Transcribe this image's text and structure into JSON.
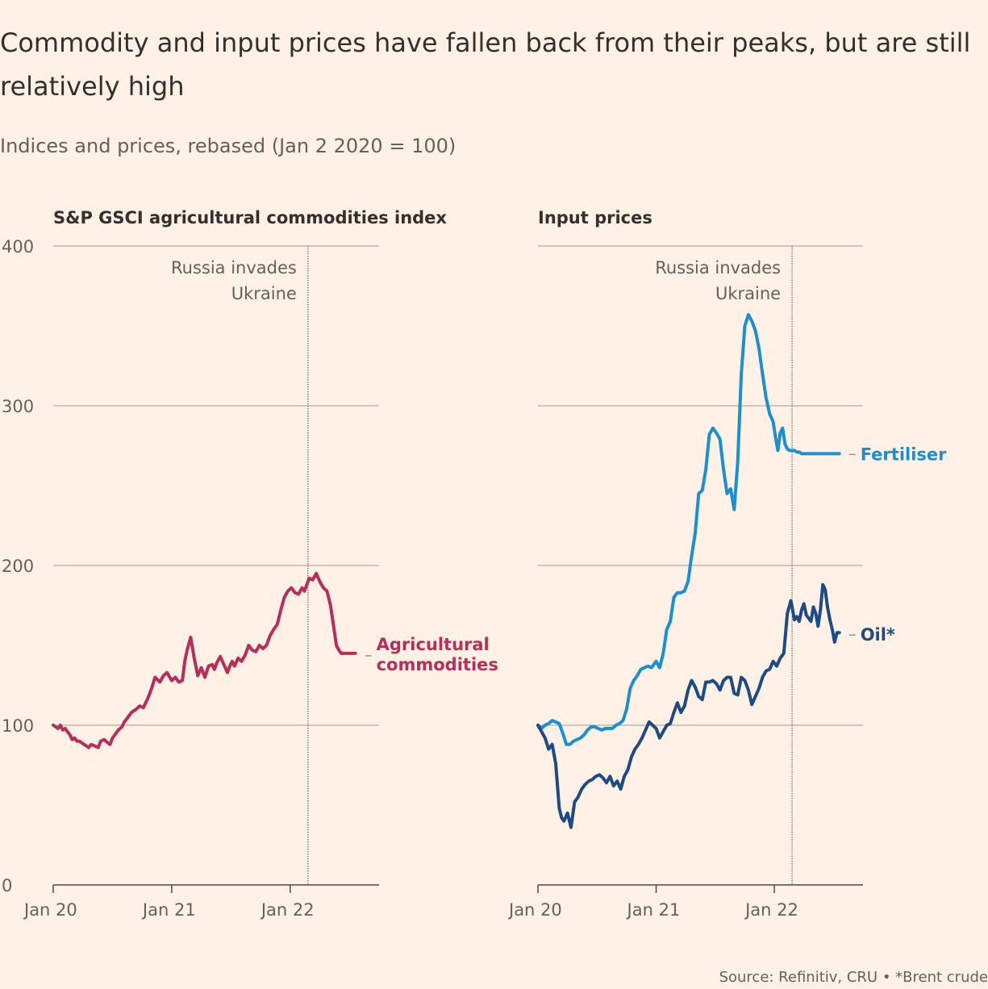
{
  "title": "Commodity and input prices have fallen back from their peaks, but are still relatively high",
  "subtitle": "Indices and prices, rebased (Jan 2 2020 = 100)",
  "source": "Source: Refinitiv, CRU • *Brent crude",
  "colors": {
    "background": "#fff1e5",
    "grid": "#b7ada4",
    "text": "#33302e",
    "muted": "#66605c",
    "agri": "#b72e5a",
    "fertiliser": "#1a8fd2",
    "oil": "#1d4b86"
  },
  "chart_data": [
    {
      "type": "line",
      "title": "S&P GSCI agricultural commodities index",
      "ylim": [
        0,
        400
      ],
      "yticks": [
        0,
        100,
        200,
        300,
        400
      ],
      "xlim": [
        2020.0,
        2022.75
      ],
      "xticks": [
        {
          "value": 2020.0,
          "label": "Jan 20"
        },
        {
          "value": 2021.0,
          "label": "Jan 21"
        },
        {
          "value": 2022.0,
          "label": "Jan 22"
        }
      ],
      "grid": true,
      "annotation": {
        "x": 2022.15,
        "lines": [
          "Russia invades",
          "Ukraine"
        ]
      },
      "series": [
        {
          "name": "Agricultural commodities",
          "label_lines": [
            "Agricultural",
            "commodities"
          ],
          "label_y": 145,
          "color": "#b72e5a",
          "x": [
            2020.0,
            2020.02,
            2020.04,
            2020.06,
            2020.08,
            2020.1,
            2020.12,
            2020.14,
            2020.16,
            2020.18,
            2020.2,
            2020.22,
            2020.24,
            2020.26,
            2020.28,
            2020.3,
            2020.32,
            2020.35,
            2020.38,
            2020.4,
            2020.43,
            2020.46,
            2020.48,
            2020.5,
            2020.52,
            2020.55,
            2020.58,
            2020.6,
            2020.63,
            2020.66,
            2020.7,
            2020.73,
            2020.76,
            2020.8,
            2020.83,
            2020.86,
            2020.9,
            2020.93,
            2020.96,
            2021.0,
            2021.03,
            2021.06,
            2021.09,
            2021.11,
            2021.13,
            2021.16,
            2021.19,
            2021.22,
            2021.25,
            2021.28,
            2021.31,
            2021.34,
            2021.36,
            2021.38,
            2021.41,
            2021.44,
            2021.47,
            2021.49,
            2021.51,
            2021.53,
            2021.56,
            2021.59,
            2021.62,
            2021.65,
            2021.68,
            2021.71,
            2021.74,
            2021.77,
            2021.8,
            2021.83,
            2021.86,
            2021.89,
            2021.92,
            2021.95,
            2021.98,
            2022.01,
            2022.04,
            2022.07,
            2022.1,
            2022.12,
            2022.14,
            2022.16,
            2022.19,
            2022.22,
            2022.25,
            2022.28,
            2022.31,
            2022.34,
            2022.37,
            2022.39,
            2022.41,
            2022.43,
            2022.45,
            2022.47,
            2022.49,
            2022.51,
            2022.53,
            2022.55
          ],
          "y": [
            100,
            99,
            98,
            100,
            97,
            98,
            96,
            94,
            91,
            92,
            90,
            90,
            89,
            88,
            87,
            86,
            88,
            87,
            86,
            90,
            91,
            89,
            88,
            92,
            94,
            97,
            99,
            102,
            105,
            108,
            110,
            112,
            111,
            117,
            123,
            130,
            127,
            131,
            133,
            128,
            130,
            127,
            128,
            140,
            147,
            155,
            142,
            131,
            136,
            130,
            137,
            138,
            135,
            139,
            143,
            138,
            133,
            137,
            140,
            137,
            142,
            140,
            144,
            150,
            147,
            146,
            150,
            148,
            150,
            156,
            160,
            163,
            172,
            180,
            184,
            186,
            183,
            182,
            186,
            184,
            188,
            192,
            191,
            195,
            190,
            186,
            184,
            175,
            160,
            150,
            147,
            145,
            145,
            145,
            145,
            145,
            145,
            145
          ]
        }
      ]
    },
    {
      "type": "line",
      "title": "Input prices",
      "ylim": [
        0,
        400
      ],
      "yticks": [
        0,
        100,
        200,
        300,
        400
      ],
      "xlim": [
        2020.0,
        2022.75
      ],
      "xticks": [
        {
          "value": 2020.0,
          "label": "Jan 20"
        },
        {
          "value": 2021.0,
          "label": "Jan 21"
        },
        {
          "value": 2022.0,
          "label": "Jan 22"
        }
      ],
      "grid": true,
      "annotation": {
        "x": 2022.15,
        "lines": [
          "Russia invades",
          "Ukraine"
        ]
      },
      "series": [
        {
          "name": "Fertiliser",
          "label_lines": [
            "Fertiliser"
          ],
          "label_y": 271,
          "color": "#1a8fd2",
          "x": [
            2020.0,
            2020.03,
            2020.06,
            2020.09,
            2020.12,
            2020.15,
            2020.18,
            2020.21,
            2020.24,
            2020.27,
            2020.3,
            2020.33,
            2020.36,
            2020.39,
            2020.42,
            2020.45,
            2020.48,
            2020.51,
            2020.54,
            2020.57,
            2020.6,
            2020.63,
            2020.66,
            2020.69,
            2020.72,
            2020.75,
            2020.78,
            2020.81,
            2020.84,
            2020.87,
            2020.9,
            2020.93,
            2020.96,
            2021.0,
            2021.03,
            2021.06,
            2021.09,
            2021.12,
            2021.15,
            2021.18,
            2021.21,
            2021.24,
            2021.27,
            2021.3,
            2021.33,
            2021.36,
            2021.39,
            2021.42,
            2021.45,
            2021.48,
            2021.51,
            2021.54,
            2021.57,
            2021.6,
            2021.63,
            2021.66,
            2021.69,
            2021.72,
            2021.75,
            2021.78,
            2021.81,
            2021.84,
            2021.87,
            2021.9,
            2021.93,
            2021.96,
            2021.99,
            2022.01,
            2022.03,
            2022.05,
            2022.07,
            2022.09,
            2022.11,
            2022.13,
            2022.15,
            2022.17,
            2022.19,
            2022.21,
            2022.23,
            2022.25,
            2022.27,
            2022.29,
            2022.31,
            2022.33,
            2022.35,
            2022.37,
            2022.39,
            2022.41,
            2022.43,
            2022.45,
            2022.47,
            2022.49,
            2022.51,
            2022.53,
            2022.55
          ],
          "y": [
            100,
            98,
            100,
            101,
            103,
            102,
            101,
            95,
            88,
            88,
            90,
            91,
            92,
            94,
            97,
            99,
            99,
            98,
            97,
            98,
            98,
            98,
            100,
            101,
            103,
            110,
            123,
            128,
            131,
            135,
            136,
            137,
            136,
            140,
            136,
            145,
            160,
            165,
            180,
            183,
            183,
            184,
            190,
            206,
            220,
            245,
            247,
            260,
            282,
            286,
            283,
            279,
            260,
            245,
            248,
            235,
            265,
            320,
            350,
            357,
            353,
            347,
            336,
            320,
            305,
            295,
            290,
            280,
            272,
            283,
            286,
            276,
            273,
            272,
            272,
            272,
            271,
            271,
            270,
            270,
            270,
            270,
            270,
            270,
            270,
            270,
            270,
            270,
            270,
            270,
            270,
            270,
            270,
            270,
            270
          ],
          "y_override": true
        },
        {
          "name": "Oil*",
          "label_lines": [
            "Oil*"
          ],
          "label_y": 158,
          "color": "#1d4b86",
          "x": [
            2020.0,
            2020.03,
            2020.06,
            2020.09,
            2020.12,
            2020.15,
            2020.18,
            2020.2,
            2020.22,
            2020.25,
            2020.28,
            2020.31,
            2020.34,
            2020.37,
            2020.4,
            2020.43,
            2020.46,
            2020.49,
            2020.52,
            2020.55,
            2020.58,
            2020.61,
            2020.64,
            2020.67,
            2020.7,
            2020.73,
            2020.76,
            2020.79,
            2020.82,
            2020.85,
            2020.88,
            2020.91,
            2020.94,
            2020.97,
            2021.0,
            2021.03,
            2021.06,
            2021.09,
            2021.12,
            2021.15,
            2021.18,
            2021.21,
            2021.24,
            2021.27,
            2021.3,
            2021.33,
            2021.36,
            2021.39,
            2021.42,
            2021.45,
            2021.48,
            2021.51,
            2021.54,
            2021.57,
            2021.6,
            2021.63,
            2021.66,
            2021.69,
            2021.72,
            2021.75,
            2021.78,
            2021.81,
            2021.84,
            2021.87,
            2021.9,
            2021.93,
            2021.96,
            2021.99,
            2022.02,
            2022.05,
            2022.08,
            2022.11,
            2022.14,
            2022.17,
            2022.19,
            2022.21,
            2022.23,
            2022.25,
            2022.27,
            2022.29,
            2022.31,
            2022.33,
            2022.35,
            2022.37,
            2022.39,
            2022.41,
            2022.43,
            2022.45,
            2022.47,
            2022.49,
            2022.51,
            2022.53,
            2022.55
          ],
          "y": [
            100,
            96,
            92,
            85,
            88,
            76,
            48,
            42,
            40,
            45,
            36,
            52,
            55,
            60,
            63,
            65,
            66,
            68,
            69,
            67,
            64,
            68,
            62,
            65,
            60,
            68,
            72,
            80,
            85,
            88,
            92,
            97,
            102,
            100,
            98,
            92,
            96,
            100,
            101,
            108,
            114,
            108,
            112,
            122,
            128,
            124,
            118,
            116,
            127,
            127,
            128,
            126,
            122,
            128,
            130,
            130,
            120,
            119,
            130,
            128,
            122,
            113,
            118,
            123,
            130,
            134,
            135,
            140,
            137,
            142,
            145,
            170,
            178,
            166,
            168,
            165,
            172,
            176,
            169,
            167,
            165,
            174,
            170,
            162,
            172,
            188,
            185,
            174,
            166,
            160,
            152,
            158,
            158
          ]
        }
      ]
    }
  ]
}
